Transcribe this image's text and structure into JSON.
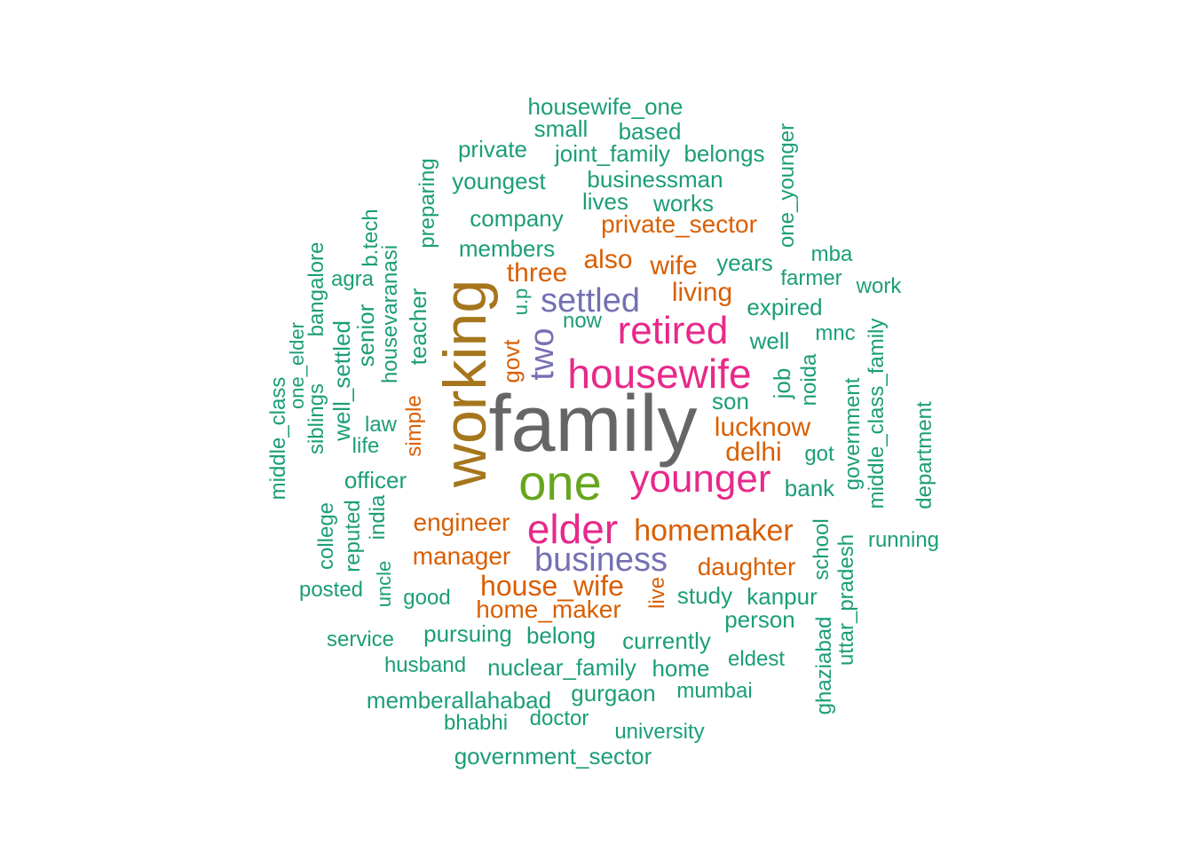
{
  "colors": {
    "teal": "#1b9e77",
    "orange": "#d95f02",
    "purple": "#7570b3",
    "pink": "#e7298a",
    "green": "#66a61e",
    "gold": "#a6761d",
    "gray": "#666666"
  },
  "words": [
    {
      "text": "family",
      "color": "gray"
    },
    {
      "text": "working",
      "color": "gold"
    },
    {
      "text": "one",
      "color": "green"
    },
    {
      "text": "housewife",
      "color": "pink"
    },
    {
      "text": "younger",
      "color": "pink"
    },
    {
      "text": "elder",
      "color": "pink"
    },
    {
      "text": "retired",
      "color": "pink"
    },
    {
      "text": "settled",
      "color": "purple"
    },
    {
      "text": "business",
      "color": "purple"
    },
    {
      "text": "two",
      "color": "purple"
    },
    {
      "text": "homemaker",
      "color": "orange"
    },
    {
      "text": "house_wife",
      "color": "orange"
    },
    {
      "text": "engineer",
      "color": "orange"
    },
    {
      "text": "manager",
      "color": "orange"
    },
    {
      "text": "daughter",
      "color": "orange"
    },
    {
      "text": "home_maker",
      "color": "orange"
    },
    {
      "text": "lucknow",
      "color": "orange"
    },
    {
      "text": "delhi",
      "color": "orange"
    },
    {
      "text": "private_sector",
      "color": "orange"
    },
    {
      "text": "also",
      "color": "orange"
    },
    {
      "text": "three",
      "color": "orange"
    },
    {
      "text": "wife",
      "color": "orange"
    },
    {
      "text": "living",
      "color": "orange"
    },
    {
      "text": "govt",
      "color": "orange"
    },
    {
      "text": "simple",
      "color": "orange"
    },
    {
      "text": "live",
      "color": "orange"
    },
    {
      "text": "housewife_one",
      "color": "teal"
    },
    {
      "text": "small",
      "color": "teal"
    },
    {
      "text": "based",
      "color": "teal"
    },
    {
      "text": "private",
      "color": "teal"
    },
    {
      "text": "joint_family",
      "color": "teal"
    },
    {
      "text": "belongs",
      "color": "teal"
    },
    {
      "text": "youngest",
      "color": "teal"
    },
    {
      "text": "businessman",
      "color": "teal"
    },
    {
      "text": "lives",
      "color": "teal"
    },
    {
      "text": "works",
      "color": "teal"
    },
    {
      "text": "company",
      "color": "teal"
    },
    {
      "text": "members",
      "color": "teal"
    },
    {
      "text": "years",
      "color": "teal"
    },
    {
      "text": "mba",
      "color": "teal"
    },
    {
      "text": "farmer",
      "color": "teal"
    },
    {
      "text": "work",
      "color": "teal"
    },
    {
      "text": "expired",
      "color": "teal"
    },
    {
      "text": "now",
      "color": "teal"
    },
    {
      "text": "well",
      "color": "teal"
    },
    {
      "text": "mnc",
      "color": "teal"
    },
    {
      "text": "son",
      "color": "teal"
    },
    {
      "text": "got",
      "color": "teal"
    },
    {
      "text": "bank",
      "color": "teal"
    },
    {
      "text": "agra",
      "color": "teal"
    },
    {
      "text": "law",
      "color": "teal"
    },
    {
      "text": "life",
      "color": "teal"
    },
    {
      "text": "officer",
      "color": "teal"
    },
    {
      "text": "running",
      "color": "teal"
    },
    {
      "text": "study",
      "color": "teal"
    },
    {
      "text": "kanpur",
      "color": "teal"
    },
    {
      "text": "person",
      "color": "teal"
    },
    {
      "text": "posted",
      "color": "teal"
    },
    {
      "text": "good",
      "color": "teal"
    },
    {
      "text": "service",
      "color": "teal"
    },
    {
      "text": "pursuing",
      "color": "teal"
    },
    {
      "text": "belong",
      "color": "teal"
    },
    {
      "text": "currently",
      "color": "teal"
    },
    {
      "text": "husband",
      "color": "teal"
    },
    {
      "text": "nuclear_family",
      "color": "teal"
    },
    {
      "text": "home",
      "color": "teal"
    },
    {
      "text": "eldest",
      "color": "teal"
    },
    {
      "text": "memberallahabad",
      "color": "teal"
    },
    {
      "text": "gurgaon",
      "color": "teal"
    },
    {
      "text": "mumbai",
      "color": "teal"
    },
    {
      "text": "bhabhi",
      "color": "teal"
    },
    {
      "text": "doctor",
      "color": "teal"
    },
    {
      "text": "university",
      "color": "teal"
    },
    {
      "text": "government_sector",
      "color": "teal"
    },
    {
      "text": "preparing",
      "color": "teal"
    },
    {
      "text": "b.tech",
      "color": "teal"
    },
    {
      "text": "housevaranasi",
      "color": "teal"
    },
    {
      "text": "bangalore",
      "color": "teal"
    },
    {
      "text": "teacher",
      "color": "teal"
    },
    {
      "text": "u.p",
      "color": "teal"
    },
    {
      "text": "senior",
      "color": "teal"
    },
    {
      "text": "well_settled",
      "color": "teal"
    },
    {
      "text": "one_elder",
      "color": "teal"
    },
    {
      "text": "middle_class",
      "color": "teal"
    },
    {
      "text": "siblings",
      "color": "teal"
    },
    {
      "text": "one_younger",
      "color": "teal"
    },
    {
      "text": "job",
      "color": "teal"
    },
    {
      "text": "noida",
      "color": "teal"
    },
    {
      "text": "government",
      "color": "teal"
    },
    {
      "text": "middle_class_family",
      "color": "teal"
    },
    {
      "text": "department",
      "color": "teal"
    },
    {
      "text": "college",
      "color": "teal"
    },
    {
      "text": "reputed",
      "color": "teal"
    },
    {
      "text": "india",
      "color": "teal"
    },
    {
      "text": "uncle",
      "color": "teal"
    },
    {
      "text": "school",
      "color": "teal"
    },
    {
      "text": "uttar_pradesh",
      "color": "teal"
    },
    {
      "text": "ghaziabad",
      "color": "teal"
    }
  ]
}
